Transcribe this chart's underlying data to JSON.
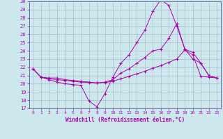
{
  "xlabel": "Windchill (Refroidissement éolien,°C)",
  "xlim": [
    -0.5,
    23.5
  ],
  "ylim": [
    17,
    30
  ],
  "yticks": [
    17,
    18,
    19,
    20,
    21,
    22,
    23,
    24,
    25,
    26,
    27,
    28,
    29,
    30
  ],
  "xticks": [
    0,
    1,
    2,
    3,
    4,
    5,
    6,
    7,
    8,
    9,
    10,
    11,
    12,
    13,
    14,
    15,
    16,
    17,
    18,
    19,
    20,
    21,
    22,
    23
  ],
  "bg_color": "#cce8ec",
  "grid_color": "#aabccc",
  "line_color": "#aa00aa",
  "lines": [
    {
      "x": [
        0,
        1,
        2,
        3,
        4,
        5,
        6,
        7,
        8,
        9,
        10,
        11,
        12,
        13,
        14,
        15,
        16,
        17,
        18,
        19,
        20,
        21,
        22,
        23
      ],
      "y": [
        21.8,
        20.8,
        20.5,
        20.2,
        20.0,
        19.9,
        19.8,
        17.9,
        17.2,
        18.8,
        20.8,
        22.5,
        23.5,
        25.0,
        26.5,
        28.8,
        30.2,
        29.5,
        27.0,
        24.2,
        23.8,
        22.5,
        21.0,
        20.7
      ]
    },
    {
      "x": [
        0,
        1,
        2,
        3,
        4,
        5,
        6,
        7,
        8,
        9,
        10,
        11,
        12,
        13,
        14,
        15,
        16,
        17,
        18,
        19,
        20,
        21,
        22,
        23
      ],
      "y": [
        21.8,
        20.8,
        20.7,
        20.7,
        20.5,
        20.4,
        20.3,
        20.2,
        20.1,
        20.2,
        20.5,
        21.3,
        21.8,
        22.5,
        23.2,
        24.0,
        24.2,
        25.5,
        27.3,
        24.2,
        23.0,
        22.5,
        21.0,
        20.7
      ]
    },
    {
      "x": [
        0,
        1,
        2,
        3,
        4,
        5,
        6,
        7,
        8,
        9,
        10,
        11,
        12,
        13,
        14,
        15,
        16,
        17,
        18,
        19,
        20,
        21,
        22,
        23
      ],
      "y": [
        21.8,
        20.8,
        20.6,
        20.5,
        20.4,
        20.3,
        20.2,
        20.15,
        20.1,
        20.15,
        20.3,
        20.6,
        20.9,
        21.2,
        21.5,
        21.9,
        22.2,
        22.6,
        23.0,
        24.1,
        23.5,
        20.9,
        20.8,
        20.7
      ]
    }
  ]
}
